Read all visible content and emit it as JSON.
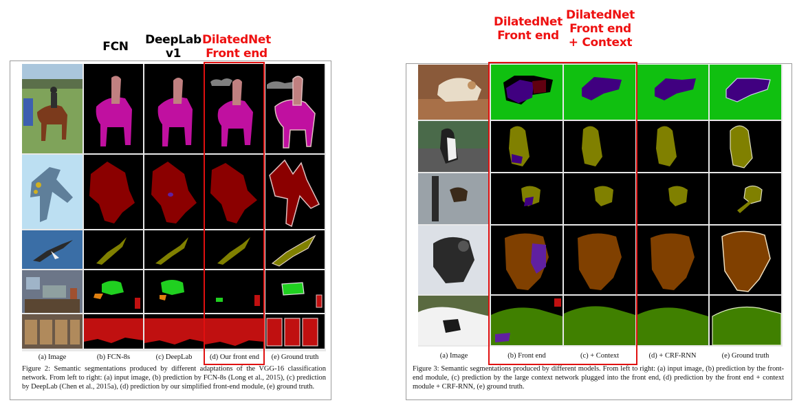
{
  "left_headers": {
    "fcn": "FCN",
    "deeplab": "DeepLab\nv1",
    "dilated": "DilatedNet\nFront end"
  },
  "right_headers": {
    "front_end": "DilatedNet\nFront end",
    "front_context": "DilatedNet\nFront end\n+ Context"
  },
  "figure2": {
    "col_labels": [
      "(a) Image",
      "(b) FCN-8s",
      "(c) DeepLab",
      "(d) Our front end",
      "(e) Ground truth"
    ],
    "caption": "Figure 2: Semantic segmentations produced by different adaptations of the VGG-16 classification network. From left to right: (a) input image, (b) prediction by FCN-8s (Long et al., 2015), (c) prediction by DeepLab (Chen et al., 2015a), (d) prediction by our simplified front-end module, (e) ground truth."
  },
  "figure3": {
    "col_labels": [
      "(a) Image",
      "(b) Front end",
      "(c) + Context",
      "(d) + CRF-RNN",
      "(e) Ground truth"
    ],
    "caption": "Figure 3: Semantic segmentations produced by different models. From left to right: (a) input image, (b) prediction by the front-end module, (c) prediction by the large context network plugged into the front end, (d) prediction by the front end + context module + CRF-RNN, (e) ground truth."
  },
  "colors": {
    "highlight": "#e01010",
    "person": "#c08080",
    "horse": "#c010a0",
    "aeroplane": "#8b0000",
    "bird": "#808000",
    "sofa": "#20d020",
    "chair": "#c01010",
    "dog": "#400080",
    "background_green": "#10c010",
    "sheep": "#804000",
    "cow": "#408000"
  }
}
